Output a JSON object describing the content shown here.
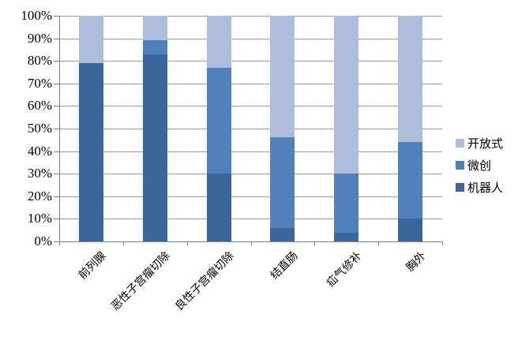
{
  "chart_data": {
    "type": "bar",
    "variant": "100-percent-stacked-column",
    "title": "",
    "categories": [
      "前列腺",
      "恶性子宫瘤切除",
      "良性子宫瘤切除",
      "结直肠",
      "疝气修补",
      "胸外"
    ],
    "series": [
      {
        "name": "机器人",
        "color": "#3B669C",
        "values": [
          79,
          83,
          30,
          6,
          4,
          10
        ]
      },
      {
        "name": "微创",
        "color": "#4F81BD",
        "values": [
          0,
          6,
          47,
          40,
          26,
          34
        ]
      },
      {
        "name": "开放式",
        "color": "#AEBDDB",
        "values": [
          21,
          11,
          23,
          54,
          70,
          56
        ]
      }
    ],
    "stack_order": "bottom-to-top",
    "y_axis": {
      "min": 0,
      "max": 100,
      "unit": "%",
      "ticks": [
        "0%",
        "10%",
        "20%",
        "30%",
        "40%",
        "50%",
        "60%",
        "70%",
        "80%",
        "90%",
        "100%"
      ]
    },
    "x_axis": {
      "labels_rotation_deg": -45
    },
    "grid": true,
    "legend": {
      "position": "right",
      "items": [
        {
          "label": "开放式",
          "series": "开放式"
        },
        {
          "label": "微创",
          "series": "微创"
        },
        {
          "label": "机器人",
          "series": "机器人"
        }
      ]
    }
  },
  "colors": {
    "background": "#FFFFFF",
    "gridline": "#9B9B9B",
    "axis": "#808080",
    "text": "#000000",
    "series_dark": "#3B669C",
    "series_medium": "#4F81BD",
    "series_light": "#AEBDDB"
  }
}
